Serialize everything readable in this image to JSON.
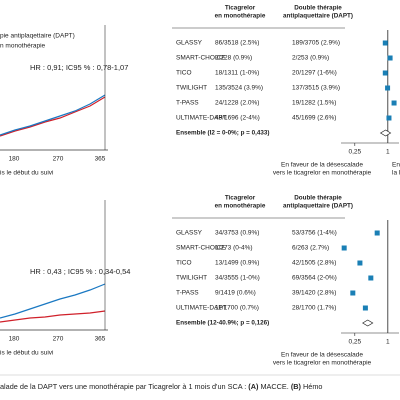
{
  "km_panels": [
    {
      "legend": [
        "pie antiplaqettaire (DAPT)",
        "n monothérapie"
      ],
      "hr_text": "HR : 0,91; IC95 % : 0,78-1,07",
      "x_ticks": [
        "180",
        "270",
        "365"
      ],
      "x_label": "is le début du suivi"
    },
    {
      "legend": [],
      "hr_text": "HR : 0,43 ; IC95 % : 0,34-0,54",
      "x_ticks": [
        "180",
        "270",
        "365"
      ],
      "x_label": "is le début du suivi"
    }
  ],
  "forest": [
    {
      "col1": [
        "Ticagrelor",
        "en monothérapie"
      ],
      "col2": [
        "Double thérapie",
        "antiplaquettaire (DAPT)"
      ],
      "rows": [
        {
          "study": "GLASSY",
          "col1": "86/3518 (2.5%)",
          "col2": "189/3705 (2.9%)",
          "hr": 0.9
        },
        {
          "study": "SMART-CHOICE",
          "col1": "2/228 (0.9%)",
          "col2": "2/253 (0.9%)",
          "hr": 1.1
        },
        {
          "study": "TICO",
          "col1": "18/1311 (1-0%)",
          "col2": "20/1297 (1-6%)",
          "hr": 0.9
        },
        {
          "study": "TWILIGHT",
          "col1": "135/3524 (3.9%)",
          "col2": "137/3515 (3.9%)",
          "hr": 0.99
        },
        {
          "study": "T-PASS",
          "col1": "24/1228 (2.0%)",
          "col2": "19/1282 (1.5%)",
          "hr": 1.3
        },
        {
          "study": "ULTIMATE-DAPT",
          "col1": "48/1696 (2-4%)",
          "col2": "45/1699 (2.6%)",
          "hr": 1.05
        }
      ],
      "overall": {
        "label": "Ensemble (I2 = 0-0%; p = 0,433)",
        "hr": 0.91
      },
      "xlim": [
        0.14,
        1.6
      ],
      "xticks": [
        {
          "value": 0.25,
          "label": "0,25"
        },
        1
      ],
      "left_note": [
        "En faveur de la désescalade",
        "vers le ticagrelor en monothérapie"
      ],
      "right_note": [
        "En faveur de",
        "la DAPT"
      ]
    },
    {
      "col1": [
        "Ticagrelor",
        "en monothérapie"
      ],
      "col2": [
        "Double thérapie",
        "antiplaquettaire (DAPT)"
      ],
      "rows": [
        {
          "study": "GLASSY",
          "col1": "34/3753 (0.9%)",
          "col2": "53/3756 (1-4%)",
          "hr": 0.64
        },
        {
          "study": "SMART-CHOICE",
          "col1": "1/273 (0-4%)",
          "col2": "6/263 (2.7%)",
          "hr": 0.16
        },
        {
          "study": "TICO",
          "col1": "13/1499 (0.9%)",
          "col2": "42/1505 (2.8%)",
          "hr": 0.31
        },
        {
          "study": "TWILIGHT",
          "col1": "34/3555 (1-0%)",
          "col2": "69/3564 (2-0%)",
          "hr": 0.49
        },
        {
          "study": "T-PASS",
          "col1": "9/1419 (0.6%)",
          "col2": "39/1420 (2.8%)",
          "hr": 0.23
        },
        {
          "study": "ULTIMATE-DAPT",
          "col1": "11/1700 (0.7%)",
          "col2": "28/1700 (1.7%)",
          "hr": 0.39
        }
      ],
      "overall": {
        "label": "Ensemble (12-40.9%; p = 0,126)",
        "hr": 0.43
      },
      "xlim": [
        0.14,
        1.6
      ],
      "xticks": [
        {
          "value": 0.25,
          "label": "0,25"
        },
        1
      ],
      "left_note": [
        "En faveur de la désescalade",
        "vers le ticagrelor en monothérapie"
      ],
      "right_note": []
    }
  ],
  "caption": {
    "text1": "alade de la DAPT vers une monothérapie par Ticagrelor à 1 mois d'un SCA : ",
    "a": "(A)",
    "text2": " MACCE. ",
    "b": "(B)",
    "text3": " Hémo"
  }
}
